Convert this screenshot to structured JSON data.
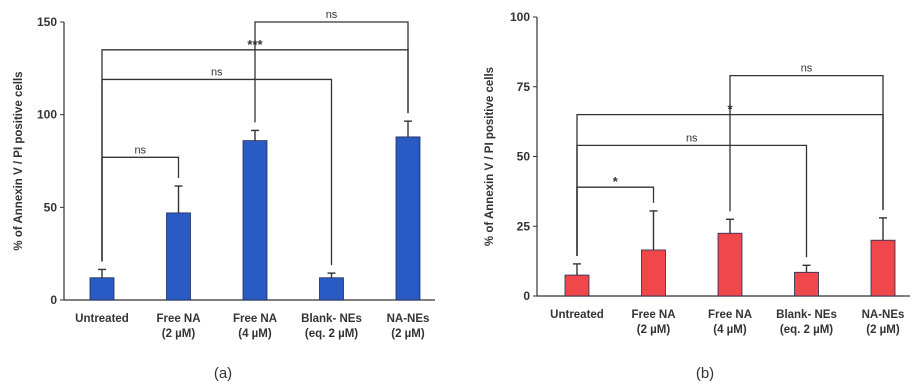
{
  "chart_data": [
    {
      "type": "bar",
      "panel_label": "(a)",
      "ylabel": "% of Annexin V / PI positive cells",
      "ylim": [
        0,
        150
      ],
      "yticks": [
        0,
        50,
        100,
        150
      ],
      "categories": [
        [
          "Untreated"
        ],
        [
          "Free NA",
          "(2 µM)"
        ],
        [
          "Free NA",
          "(4 µM)"
        ],
        [
          "Blank- NEs",
          "(eq. 2 µM)"
        ],
        [
          "NA-NEs",
          "(2 µM)"
        ]
      ],
      "values": [
        12,
        47,
        86,
        12,
        88
      ],
      "errors": [
        4.5,
        14.5,
        5.5,
        2.5,
        8.5
      ],
      "bar_color": "#2a5bc4",
      "grid": false,
      "comparisons": [
        {
          "from": 0,
          "to": 1,
          "label": "ns",
          "y": 77
        },
        {
          "from": 0,
          "to": 3,
          "label": "ns",
          "y": 119
        },
        {
          "from": 0,
          "to": 4,
          "label": "***",
          "y": 135
        },
        {
          "from": 2,
          "to": 4,
          "label": "ns",
          "y": 150
        }
      ]
    },
    {
      "type": "bar",
      "panel_label": "(b)",
      "ylabel": "% of Annexin V / PI positive cells",
      "ylim": [
        0,
        100
      ],
      "yticks": [
        0,
        25,
        50,
        75,
        100
      ],
      "categories": [
        [
          "Untreated"
        ],
        [
          "Free NA",
          "(2 µM)"
        ],
        [
          "Free NA",
          "(4 µM)"
        ],
        [
          "Blank- NEs",
          "(eq. 2 µM)"
        ],
        [
          "NA-NEs",
          "(2 µM)"
        ]
      ],
      "values": [
        7.5,
        16.5,
        22.5,
        8.5,
        20
      ],
      "errors": [
        4,
        14,
        5,
        2.5,
        8
      ],
      "bar_color": "#f0474b",
      "grid": false,
      "comparisons": [
        {
          "from": 0,
          "to": 1,
          "label": "*",
          "y": 39
        },
        {
          "from": 0,
          "to": 3,
          "label": "ns",
          "y": 54
        },
        {
          "from": 0,
          "to": 4,
          "label": "*",
          "y": 65
        },
        {
          "from": 2,
          "to": 4,
          "label": "ns",
          "y": 79
        }
      ]
    }
  ]
}
